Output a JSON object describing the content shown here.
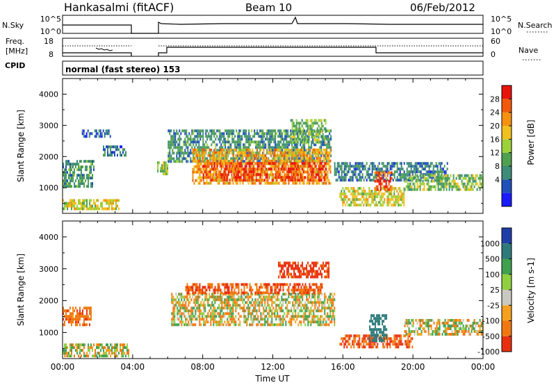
{
  "header": {
    "station": "Hankasalmi (fitACF)",
    "beam": "Beam 10",
    "date": "06/Feb/2012"
  },
  "nsky_panel": {
    "left_label": "N.Sky",
    "left_ticks": [
      "10^5",
      "10^0"
    ],
    "right_ticks": [
      "10^5",
      "10^0"
    ],
    "right_label": "N.Search"
  },
  "freq_panel": {
    "left_label_1": "Freq.",
    "left_label_2": "[MHz]",
    "left_ticks": [
      "18",
      "8"
    ],
    "right_ticks": [
      "60",
      "0"
    ],
    "right_label": "Nave"
  },
  "cpid": {
    "label": "CPID",
    "value": "normal (fast stereo) 153"
  },
  "power_panel": {
    "ylabel": "Slant Range [km]",
    "yticks": [
      "4000",
      "3000",
      "2000",
      "1000"
    ],
    "colorbar_label": "Power [dB]",
    "colorbar_ticks": [
      "28",
      "24",
      "20",
      "16",
      "12",
      "8",
      "4"
    ],
    "colors": [
      "#1a1aff",
      "#1f4fb8",
      "#3d8c78",
      "#4fa04f",
      "#9cd13a",
      "#f0c020",
      "#f59010",
      "#f05a0a",
      "#e8140a"
    ]
  },
  "velocity_panel": {
    "ylabel": "Slant Range [km]",
    "yticks": [
      "4000",
      "3000",
      "2000",
      "1000"
    ],
    "colorbar_label": "Velocity [m s-1]",
    "colorbar_ticks": [
      "1000",
      "500",
      "100",
      "25",
      "-25",
      "-100",
      "-500",
      "-1000"
    ],
    "colors": [
      "#1f3fa8",
      "#2e7a7a",
      "#3fa050",
      "#8fd040",
      "#c8c8c0",
      "#f5a020",
      "#f07810",
      "#e83010"
    ]
  },
  "xaxis": {
    "label": "Time UT",
    "ticks": [
      "00:00",
      "04:00",
      "08:00",
      "12:00",
      "16:00",
      "20:00",
      "00:00"
    ]
  },
  "chart_data": [
    {
      "type": "heatmap",
      "title": "Power",
      "xlabel": "Time UT",
      "ylabel": "Slant Range [km]",
      "xlim": [
        0,
        24
      ],
      "ylim": [
        180,
        4500
      ],
      "colorbar_label": "Power [dB]",
      "colorbar_range": [
        0,
        32
      ],
      "regions": [
        {
          "t": [
            0.0,
            1.8
          ],
          "r": [
            1000,
            1850
          ],
          "level": 10
        },
        {
          "t": [
            0.0,
            3.2
          ],
          "r": [
            280,
            550
          ],
          "level": 18
        },
        {
          "t": [
            2.3,
            3.6
          ],
          "r": [
            2000,
            2350
          ],
          "level": 8
        },
        {
          "t": [
            1.1,
            2.7
          ],
          "r": [
            2600,
            2800
          ],
          "level": 6
        },
        {
          "t": [
            5.4,
            6.0
          ],
          "r": [
            1400,
            1800
          ],
          "level": 16
        },
        {
          "t": [
            6.0,
            15.3
          ],
          "r": [
            1800,
            2800
          ],
          "level": 10
        },
        {
          "t": [
            7.4,
            15.3
          ],
          "r": [
            1100,
            2200
          ],
          "level": 22
        },
        {
          "t": [
            8.0,
            15.0
          ],
          "r": [
            1200,
            1800
          ],
          "level": 28
        },
        {
          "t": [
            13.0,
            15.0
          ],
          "r": [
            2400,
            3200
          ],
          "level": 14
        },
        {
          "t": [
            15.8,
            19.5
          ],
          "r": [
            400,
            1000
          ],
          "level": 18
        },
        {
          "t": [
            15.5,
            22.0
          ],
          "r": [
            1200,
            1800
          ],
          "level": 8
        },
        {
          "t": [
            17.8,
            18.8
          ],
          "r": [
            900,
            1500
          ],
          "level": 28
        },
        {
          "t": [
            19.5,
            24.0
          ],
          "r": [
            900,
            1400
          ],
          "level": 14
        }
      ]
    },
    {
      "type": "heatmap",
      "title": "Velocity",
      "xlabel": "Time UT",
      "ylabel": "Slant Range [km]",
      "xlim": [
        0,
        24
      ],
      "ylim": [
        180,
        4500
      ],
      "colorbar_label": "Velocity [m s-1]",
      "colorbar_range": [
        -1000,
        1000
      ],
      "regions": [
        {
          "t": [
            0.0,
            3.8
          ],
          "r": [
            220,
            600
          ],
          "level": 0
        },
        {
          "t": [
            0.0,
            1.6
          ],
          "r": [
            1200,
            1800
          ],
          "level": -200
        },
        {
          "t": [
            6.2,
            15.5
          ],
          "r": [
            1200,
            2200
          ],
          "level": 0
        },
        {
          "t": [
            7.0,
            14.8
          ],
          "r": [
            2200,
            2500
          ],
          "level": -300
        },
        {
          "t": [
            12.3,
            15.2
          ],
          "r": [
            2700,
            3200
          ],
          "level": -400
        },
        {
          "t": [
            15.8,
            20.0
          ],
          "r": [
            500,
            900
          ],
          "level": -300
        },
        {
          "t": [
            17.5,
            18.5
          ],
          "r": [
            700,
            1500
          ],
          "level": 500
        },
        {
          "t": [
            19.5,
            24.0
          ],
          "r": [
            900,
            1400
          ],
          "level": 0
        }
      ]
    }
  ]
}
